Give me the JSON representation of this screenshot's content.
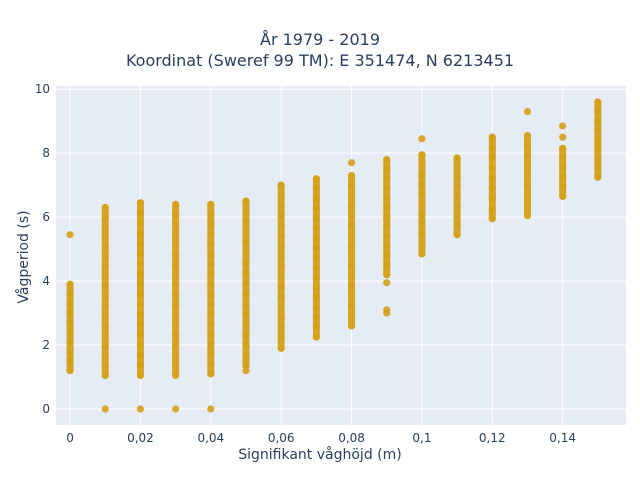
{
  "chart_data": {
    "type": "scatter",
    "title_lines": [
      "År 1979 - 2019",
      "Koordinat (Sweref 99 TM): E 351474, N 6213451"
    ],
    "xlabel": "Signifikant våghöjd (m)",
    "ylabel": "Vågperiod (s)",
    "xlim": [
      -0.004,
      0.158
    ],
    "ylim": [
      -0.5,
      10.1
    ],
    "xticks": [
      {
        "value": 0,
        "label": "0"
      },
      {
        "value": 0.02,
        "label": "0,02"
      },
      {
        "value": 0.04,
        "label": "0,04"
      },
      {
        "value": 0.06,
        "label": "0,06"
      },
      {
        "value": 0.08,
        "label": "0,08"
      },
      {
        "value": 0.1,
        "label": "0,1"
      },
      {
        "value": 0.12,
        "label": "0,12"
      },
      {
        "value": 0.14,
        "label": "0,14"
      }
    ],
    "yticks": [
      {
        "value": 0,
        "label": "0"
      },
      {
        "value": 2,
        "label": "2"
      },
      {
        "value": 4,
        "label": "4"
      },
      {
        "value": 6,
        "label": "6"
      },
      {
        "value": 8,
        "label": "8"
      },
      {
        "value": 10,
        "label": "10"
      }
    ],
    "grid": true,
    "marker_color": "#d4a017",
    "plot_background": "#e5ecf6",
    "series": [
      {
        "points": [
          {
            "x": 0,
            "y": [
              1.2,
              3.9
            ],
            "extra": [
              5.45
            ]
          },
          {
            "x": 0.01,
            "y": [
              1.05,
              6.3
            ],
            "extra": [
              0
            ]
          },
          {
            "x": 0.02,
            "y": [
              1.05,
              6.45
            ],
            "extra": [
              0
            ]
          },
          {
            "x": 0.03,
            "y": [
              1.05,
              6.4
            ],
            "extra": [
              0
            ]
          },
          {
            "x": 0.04,
            "y": [
              1.1,
              6.4
            ],
            "extra": [
              0
            ]
          },
          {
            "x": 0.05,
            "y": [
              1.35,
              6.5
            ],
            "extra": [
              1.2
            ]
          },
          {
            "x": 0.06,
            "y": [
              1.9,
              7.0
            ],
            "extra": []
          },
          {
            "x": 0.07,
            "y": [
              2.25,
              7.2
            ],
            "extra": []
          },
          {
            "x": 0.08,
            "y": [
              2.6,
              7.3
            ],
            "extra": [
              7.7
            ]
          },
          {
            "x": 0.09,
            "y": [
              4.2,
              7.8
            ],
            "extra": [
              3.0,
              3.1,
              3.95
            ]
          },
          {
            "x": 0.1,
            "y": [
              4.85,
              7.95
            ],
            "extra": [
              8.45
            ]
          },
          {
            "x": 0.11,
            "y": [
              5.45,
              7.85
            ],
            "extra": []
          },
          {
            "x": 0.12,
            "y": [
              5.95,
              8.5
            ],
            "extra": []
          },
          {
            "x": 0.13,
            "y": [
              6.05,
              8.55
            ],
            "extra": [
              9.3
            ]
          },
          {
            "x": 0.14,
            "y": [
              6.65,
              8.15
            ],
            "extra": [
              8.5,
              8.85
            ]
          },
          {
            "x": 0.15,
            "y": [
              7.25,
              9.6
            ],
            "extra": []
          }
        ]
      }
    ]
  }
}
